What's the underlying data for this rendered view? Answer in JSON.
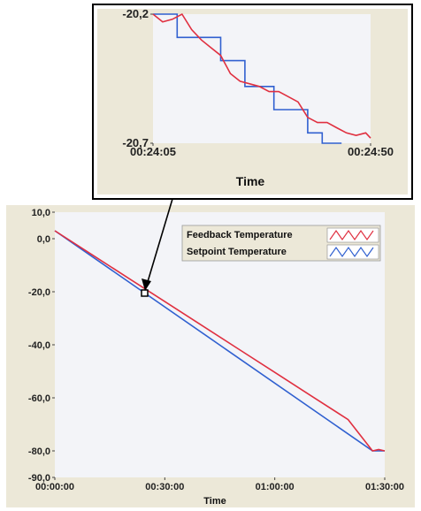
{
  "chart_data": [
    {
      "type": "line",
      "title": "",
      "xlabel": "Time",
      "ylabel": "",
      "x_ticks": [
        "00:00:00",
        "00:30:00",
        "01:00:00",
        "01:30:00"
      ],
      "y_ticks": [
        "10,0",
        "0,0",
        "-20,0",
        "-40,0",
        "-60,0",
        "-80,0",
        "-90,0"
      ],
      "xlim_seconds": [
        0,
        5400
      ],
      "ylim": [
        -90,
        10
      ],
      "grid": false,
      "legend_position": "top-right",
      "series": [
        {
          "name": "Feedback Temperature",
          "color": "#e03040",
          "x_seconds": [
            0,
            600,
            1200,
            1800,
            2400,
            3000,
            3600,
            4200,
            4800,
            5200,
            5300,
            5400
          ],
          "y": [
            3,
            -5.9,
            -14.8,
            -23.7,
            -32.6,
            -41.5,
            -50.4,
            -59.3,
            -68.2,
            -80,
            -79.5,
            -80
          ]
        },
        {
          "name": "Setpoint Temperature",
          "color": "#3060d0",
          "x_seconds": [
            0,
            5200,
            5400
          ],
          "y": [
            3,
            -80,
            -80
          ]
        }
      ]
    },
    {
      "type": "line",
      "title": "",
      "xlabel": "Time",
      "ylabel": "",
      "x_ticks": [
        "00:24:05",
        "00:24:50"
      ],
      "y_ticks": [
        "-20,2",
        "-20,7"
      ],
      "xlim_seconds": [
        1445,
        1490
      ],
      "ylim": [
        -20.7,
        -20.2
      ],
      "grid": false,
      "series": [
        {
          "name": "Feedback Temperature",
          "color": "#e03040",
          "x_seconds": [
            1445,
            1447,
            1449,
            1451,
            1453,
            1455,
            1457,
            1459,
            1461,
            1463,
            1465,
            1467,
            1469,
            1471,
            1473,
            1475,
            1477,
            1479,
            1481,
            1483,
            1485,
            1487,
            1489,
            1490
          ],
          "y": [
            -20.2,
            -20.23,
            -20.22,
            -20.2,
            -20.26,
            -20.3,
            -20.33,
            -20.36,
            -20.43,
            -20.46,
            -20.47,
            -20.48,
            -20.5,
            -20.5,
            -20.52,
            -20.54,
            -20.6,
            -20.62,
            -20.62,
            -20.64,
            -20.66,
            -20.67,
            -20.66,
            -20.68
          ]
        },
        {
          "name": "Setpoint Temperature",
          "color": "#3060d0",
          "step": true,
          "x_seconds": [
            1445,
            1450,
            1450,
            1459,
            1459,
            1464,
            1464,
            1470,
            1470,
            1477,
            1477,
            1480,
            1480,
            1484
          ],
          "y": [
            -20.2,
            -20.2,
            -20.29,
            -20.29,
            -20.38,
            -20.38,
            -20.48,
            -20.48,
            -20.57,
            -20.57,
            -20.66,
            -20.66,
            -20.7,
            -20.7
          ]
        }
      ]
    }
  ]
}
